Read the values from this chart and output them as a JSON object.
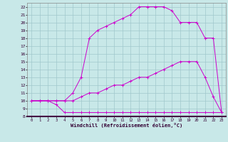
{
  "xlabel": "Windchill (Refroidissement éolien,°C)",
  "background_color": "#c8e8e8",
  "grid_color": "#a0c8cc",
  "line_color": "#cc00cc",
  "xlim": [
    -0.5,
    23.5
  ],
  "ylim": [
    8,
    22.5
  ],
  "yticks": [
    8,
    9,
    10,
    11,
    12,
    13,
    14,
    15,
    16,
    17,
    18,
    19,
    20,
    21,
    22
  ],
  "xticks": [
    0,
    1,
    2,
    3,
    4,
    5,
    6,
    7,
    8,
    9,
    10,
    11,
    12,
    13,
    14,
    15,
    16,
    17,
    18,
    19,
    20,
    21,
    22,
    23
  ],
  "line1_x": [
    0,
    1,
    2,
    3,
    4,
    5,
    6,
    7,
    8,
    9,
    10,
    11,
    12,
    13,
    14,
    15,
    16,
    17,
    18,
    19,
    20,
    21,
    22,
    23
  ],
  "line1_y": [
    10,
    10,
    10,
    9.5,
    8.5,
    8.5,
    8.5,
    8.5,
    8.5,
    8.5,
    8.5,
    8.5,
    8.5,
    8.5,
    8.5,
    8.5,
    8.5,
    8.5,
    8.5,
    8.5,
    8.5,
    8.5,
    8.5,
    8.5
  ],
  "line2_x": [
    0,
    1,
    2,
    3,
    4,
    5,
    6,
    7,
    8,
    9,
    10,
    11,
    12,
    13,
    14,
    15,
    16,
    17,
    18,
    19,
    20,
    21,
    22,
    23
  ],
  "line2_y": [
    10,
    10,
    10,
    10,
    10,
    10,
    10.5,
    11,
    11,
    11.5,
    12,
    12,
    12.5,
    13,
    13,
    13.5,
    14,
    14.5,
    15,
    15,
    15,
    13,
    10.5,
    8.5
  ],
  "line3_x": [
    0,
    1,
    2,
    3,
    4,
    5,
    6,
    7,
    8,
    9,
    10,
    11,
    12,
    13,
    14,
    15,
    16,
    17,
    18,
    19,
    20,
    21,
    22,
    23
  ],
  "line3_y": [
    10,
    10,
    10,
    10,
    10,
    11,
    13,
    18,
    19,
    19.5,
    20,
    20.5,
    21,
    22,
    22,
    22,
    22,
    21.5,
    20,
    20,
    20,
    18,
    18,
    8.5
  ]
}
